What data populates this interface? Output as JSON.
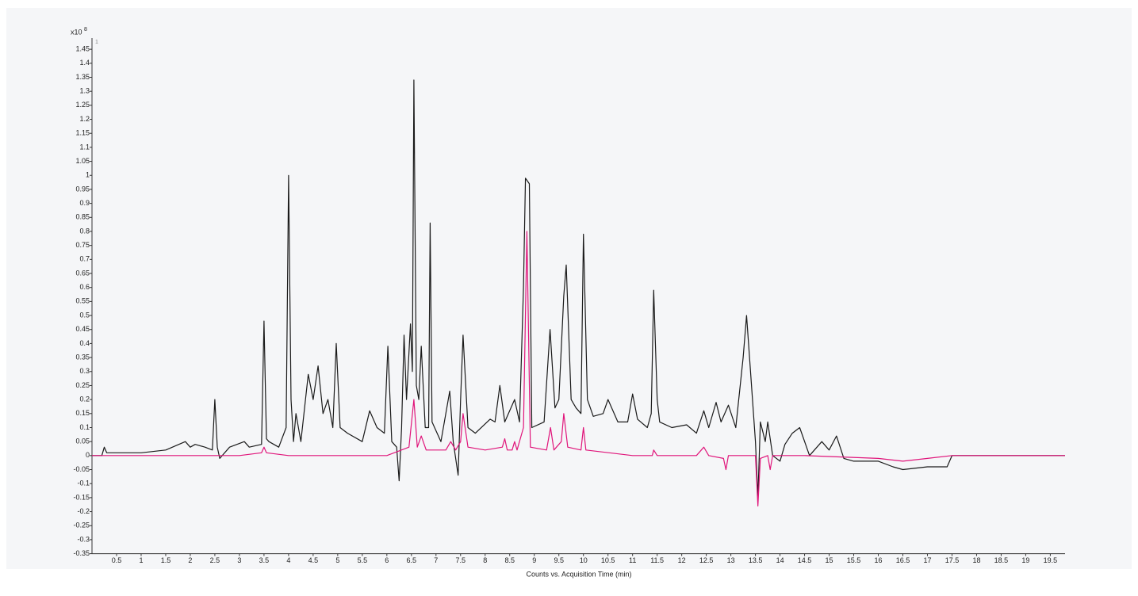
{
  "chart_data": {
    "type": "line",
    "y_multiplier": "x10",
    "y_exponent": "8",
    "trace_label": "1",
    "xlabel": "Counts vs. Acquisition Time (min)",
    "xlim": [
      0,
      19.8
    ],
    "ylim": [
      -0.35,
      1.49
    ],
    "xticks": [
      0.5,
      1,
      1.5,
      2,
      2.5,
      3,
      3.5,
      4,
      4.5,
      5,
      5.5,
      6,
      6.5,
      7,
      7.5,
      8,
      8.5,
      9,
      9.5,
      10,
      10.5,
      11,
      11.5,
      12,
      12.5,
      13,
      13.5,
      14,
      14.5,
      15,
      15.5,
      16,
      16.5,
      17,
      17.5,
      18,
      18.5,
      19,
      19.5
    ],
    "yticks": [
      -0.35,
      -0.3,
      -0.25,
      -0.2,
      -0.15,
      -0.1,
      -0.05,
      0,
      0.05,
      0.1,
      0.15,
      0.2,
      0.25,
      0.3,
      0.35,
      0.4,
      0.45,
      0.5,
      0.55,
      0.6,
      0.65,
      0.7,
      0.75,
      0.8,
      0.85,
      0.9,
      0.95,
      1,
      1.05,
      1.1,
      1.15,
      1.2,
      1.25,
      1.3,
      1.35,
      1.4,
      1.45
    ],
    "series": [
      {
        "color": "#1a1a1a",
        "x": [
          0,
          0.2,
          0.25,
          0.3,
          0.6,
          1,
          1.5,
          1.9,
          2,
          2.1,
          2.3,
          2.45,
          2.5,
          2.55,
          2.6,
          2.8,
          3.1,
          3.2,
          3.45,
          3.5,
          3.55,
          3.6,
          3.7,
          3.8,
          3.95,
          4,
          4.05,
          4.1,
          4.15,
          4.25,
          4.4,
          4.5,
          4.6,
          4.7,
          4.8,
          4.9,
          4.97,
          5.05,
          5.2,
          5.5,
          5.65,
          5.8,
          5.95,
          6.02,
          6.1,
          6.2,
          6.25,
          6.3,
          6.35,
          6.4,
          6.48,
          6.52,
          6.55,
          6.6,
          6.65,
          6.7,
          6.78,
          6.85,
          6.88,
          6.92,
          7.1,
          7.28,
          7.35,
          7.45,
          7.5,
          7.55,
          7.65,
          7.8,
          8.1,
          8.2,
          8.3,
          8.4,
          8.6,
          8.7,
          8.78,
          8.82,
          8.9,
          8.95,
          9.2,
          9.32,
          9.42,
          9.5,
          9.6,
          9.65,
          9.75,
          9.85,
          9.95,
          10,
          10.08,
          10.2,
          10.4,
          10.5,
          10.7,
          10.9,
          11,
          11.1,
          11.3,
          11.38,
          11.43,
          11.5,
          11.55,
          11.8,
          12.1,
          12.3,
          12.45,
          12.55,
          12.7,
          12.8,
          12.95,
          13.1,
          13.25,
          13.32,
          13.4,
          13.5,
          13.55,
          13.6,
          13.7,
          13.75,
          13.85,
          14,
          14.1,
          14.25,
          14.4,
          14.6,
          14.85,
          15,
          15.15,
          15.3,
          15.5,
          16,
          16.3,
          16.5,
          17,
          17.4,
          17.5,
          18,
          19,
          19.8
        ],
        "values": [
          0,
          0,
          0.03,
          0.01,
          0.01,
          0.01,
          0.02,
          0.05,
          0.03,
          0.04,
          0.03,
          0.02,
          0.2,
          0.03,
          -0.01,
          0.03,
          0.05,
          0.03,
          0.04,
          0.48,
          0.06,
          0.05,
          0.04,
          0.03,
          0.1,
          1.0,
          0.2,
          0.05,
          0.15,
          0.05,
          0.29,
          0.2,
          0.32,
          0.15,
          0.2,
          0.1,
          0.4,
          0.1,
          0.08,
          0.05,
          0.16,
          0.1,
          0.08,
          0.39,
          0.05,
          0.03,
          -0.09,
          0.1,
          0.43,
          0.2,
          0.47,
          0.3,
          1.34,
          0.25,
          0.2,
          0.39,
          0.1,
          0.1,
          0.83,
          0.12,
          0.05,
          0.23,
          0.05,
          -0.07,
          0.2,
          0.43,
          0.1,
          0.08,
          0.13,
          0.12,
          0.25,
          0.12,
          0.2,
          0.12,
          0.6,
          0.99,
          0.97,
          0.1,
          0.12,
          0.45,
          0.17,
          0.2,
          0.57,
          0.68,
          0.2,
          0.17,
          0.15,
          0.79,
          0.2,
          0.14,
          0.15,
          0.2,
          0.12,
          0.12,
          0.22,
          0.13,
          0.1,
          0.15,
          0.59,
          0.2,
          0.12,
          0.1,
          0.11,
          0.08,
          0.16,
          0.1,
          0.19,
          0.12,
          0.18,
          0.1,
          0.35,
          0.5,
          0.3,
          0.05,
          -0.15,
          0.12,
          0.05,
          0.12,
          0,
          -0.02,
          0.04,
          0.08,
          0.1,
          0,
          0.05,
          0.02,
          0.07,
          -0.01,
          -0.02,
          -0.02,
          -0.04,
          -0.05,
          -0.04,
          -0.04,
          0,
          0,
          0,
          0
        ]
      },
      {
        "color": "#e0147a",
        "x": [
          0,
          1,
          2,
          3,
          3.45,
          3.5,
          3.55,
          4,
          5,
          6,
          6.45,
          6.55,
          6.62,
          6.7,
          6.8,
          7.2,
          7.3,
          7.4,
          7.5,
          7.55,
          7.65,
          8,
          8.35,
          8.4,
          8.45,
          8.55,
          8.6,
          8.65,
          8.78,
          8.85,
          8.92,
          9.25,
          9.33,
          9.4,
          9.55,
          9.6,
          9.68,
          9.95,
          10,
          10.05,
          11,
          11.4,
          11.43,
          11.5,
          12.3,
          12.45,
          12.55,
          12.85,
          12.9,
          12.95,
          13.5,
          13.55,
          13.6,
          13.75,
          13.8,
          13.85,
          14.5,
          16,
          16.5,
          17,
          17.5,
          19.8
        ],
        "values": [
          0,
          0,
          0,
          0,
          0.01,
          0.03,
          0.01,
          0,
          0,
          0,
          0.03,
          0.2,
          0.03,
          0.07,
          0.02,
          0.02,
          0.05,
          0.02,
          0.05,
          0.15,
          0.03,
          0.02,
          0.03,
          0.06,
          0.02,
          0.02,
          0.05,
          0.02,
          0.1,
          0.8,
          0.03,
          0.02,
          0.1,
          0.02,
          0.05,
          0.15,
          0.03,
          0.02,
          0.1,
          0.02,
          0,
          0,
          0.02,
          0,
          0,
          0.03,
          0,
          -0.01,
          -0.05,
          0,
          0,
          -0.18,
          -0.01,
          0,
          -0.05,
          0,
          0,
          -0.01,
          -0.02,
          -0.01,
          0,
          0
        ]
      }
    ]
  }
}
